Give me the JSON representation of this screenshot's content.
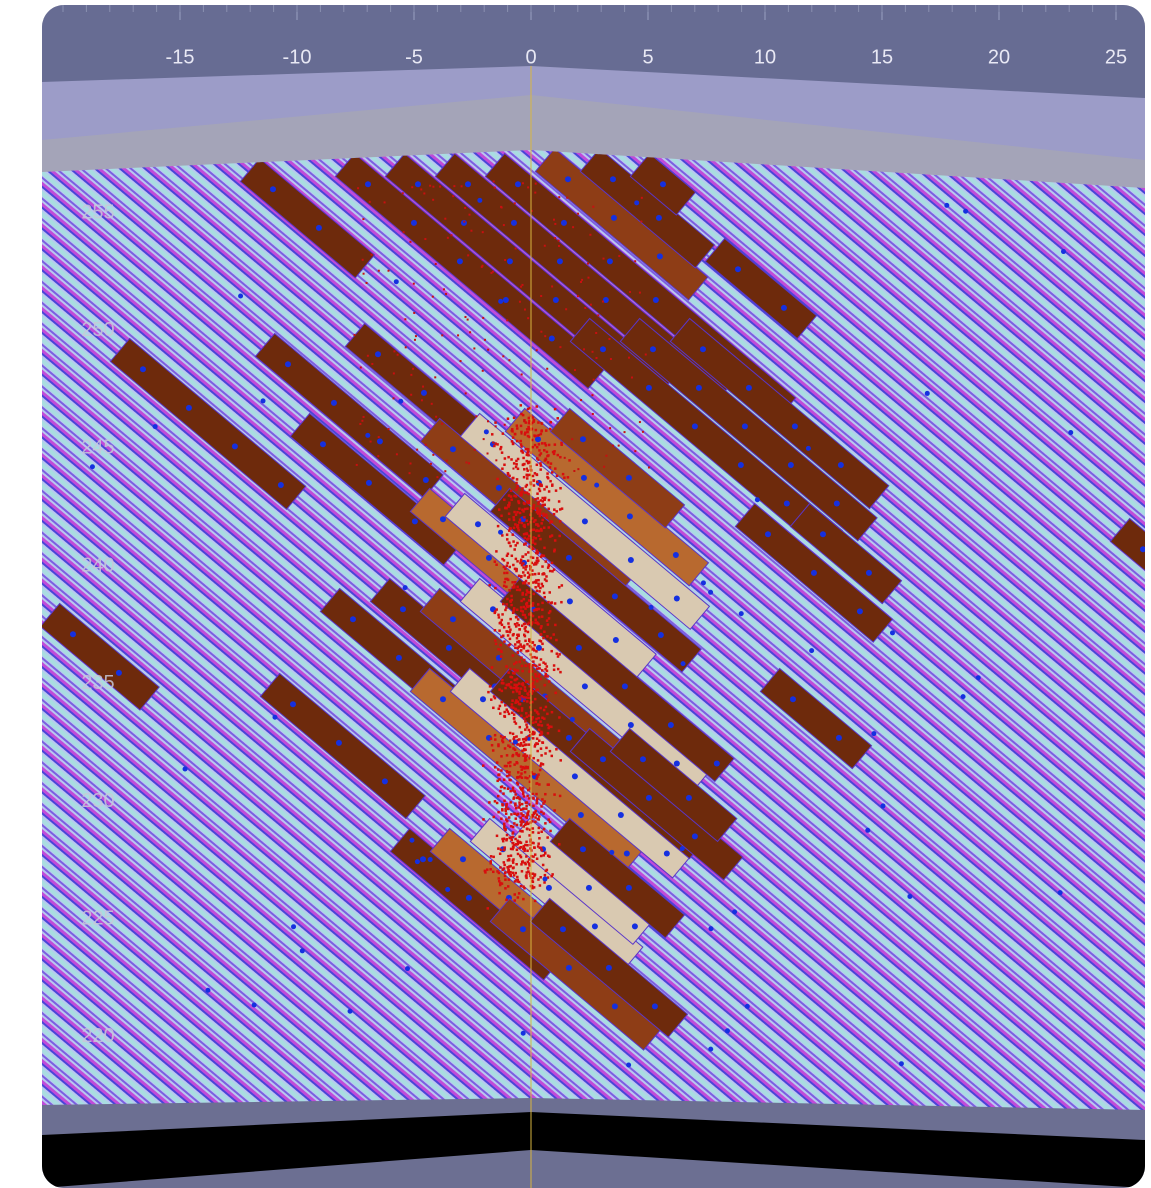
{
  "x_axis": {
    "ticks": [
      -15,
      -10,
      -5,
      0,
      5,
      10,
      15,
      20,
      25
    ]
  },
  "y_axis": {
    "ticks": [
      255,
      250,
      245,
      240,
      235,
      230,
      225,
      220
    ]
  }
}
